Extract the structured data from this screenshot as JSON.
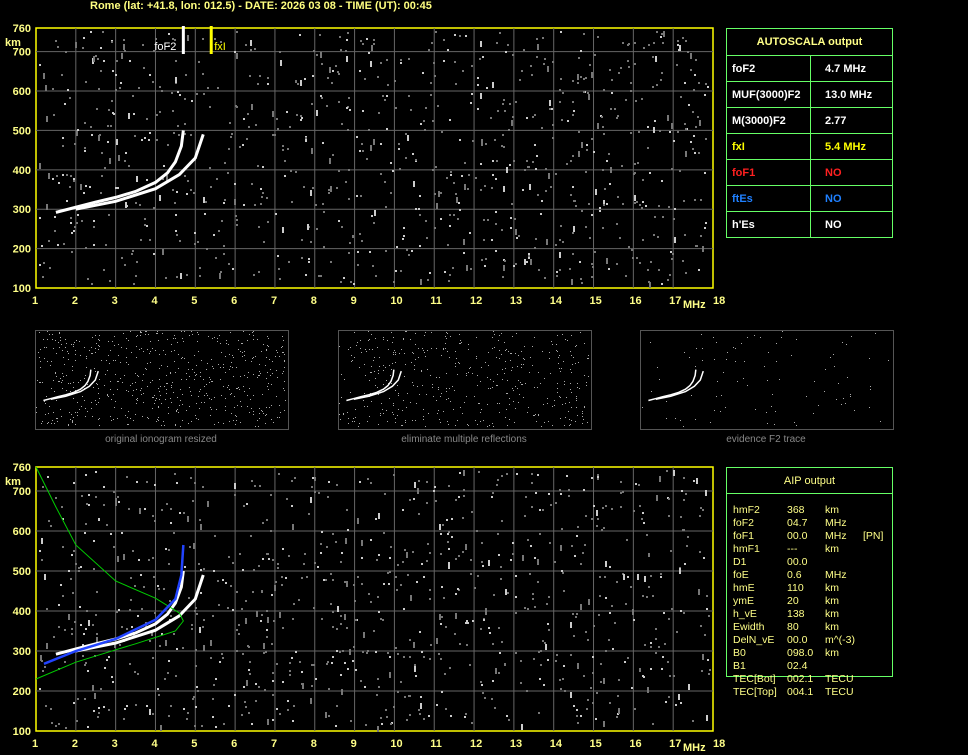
{
  "header": {
    "title": "Rome (lat: +41.8, lon: 012.5) - DATE: 2026 03 08 - TIME (UT): 00:45"
  },
  "autoscala": {
    "title": "AUTOSCALA output",
    "rows": [
      {
        "label": "foF2",
        "value": "4.7 MHz",
        "color": "#ffffff"
      },
      {
        "label": "MUF(3000)F2",
        "value": "13.0 MHz",
        "color": "#ffffff"
      },
      {
        "label": "M(3000)F2",
        "value": "2.77",
        "color": "#ffffff"
      },
      {
        "label": "fxI",
        "value": "5.4 MHz",
        "color": "#ffff00"
      },
      {
        "label": "foF1",
        "value": "NO",
        "color": "#ff2020"
      },
      {
        "label": "ftEs",
        "value": "NO",
        "color": "#2080ff"
      },
      {
        "label": "h'Es",
        "value": "NO",
        "color": "#ffffff"
      }
    ]
  },
  "aip": {
    "title": "AIP output",
    "rows": [
      [
        "hmF2",
        "368",
        "km",
        ""
      ],
      [
        "foF2",
        "04.7",
        "MHz",
        ""
      ],
      [
        "foF1",
        "00.0",
        "MHz",
        "[PN]"
      ],
      [
        "hmF1",
        "---",
        "km",
        ""
      ],
      [
        "D1",
        "00.0",
        "",
        ""
      ],
      [
        "foE",
        "0.6",
        "MHz",
        ""
      ],
      [
        "hmE",
        "110",
        "km",
        ""
      ],
      [
        "ymE",
        "20",
        "km",
        ""
      ],
      [
        "h_vE",
        "138",
        "km",
        ""
      ],
      [
        "Ewidth",
        "80",
        "km",
        ""
      ],
      [
        "DelN_vE",
        "00.0",
        "m^(-3)",
        ""
      ],
      [
        "B0",
        "098.0",
        "km",
        ""
      ],
      [
        "B1",
        "02.4",
        "",
        ""
      ],
      [
        "TEC[Bot]",
        "002.1",
        "TECU",
        ""
      ],
      [
        "TEC[Top]",
        "004.1",
        "TECU",
        ""
      ]
    ]
  },
  "thumbnails": [
    "original ionogram resized",
    "eliminate multiple reflections",
    "evidence F2 trace"
  ],
  "markers": {
    "foF2_label": "foF2",
    "fxI_label": "fxI",
    "foF2": 4.7,
    "fxI": 5.4
  },
  "chart_data": {
    "type": "scatter",
    "xlabel": "MHz",
    "ylabel": "km",
    "xlim": [
      1,
      18
    ],
    "ylim": [
      100,
      760
    ],
    "xticks": [
      "1",
      "2",
      "3",
      "4",
      "5",
      "6",
      "7",
      "8",
      "9",
      "10",
      "11",
      "12",
      "13",
      "14",
      "15",
      "16",
      "17",
      "18"
    ],
    "yticks": [
      "100",
      "200",
      "300",
      "400",
      "500",
      "600",
      "700",
      "760"
    ],
    "grid": true,
    "o_trace": [
      [
        1.5,
        292
      ],
      [
        2,
        305
      ],
      [
        2.5,
        318
      ],
      [
        3,
        330
      ],
      [
        3.5,
        345
      ],
      [
        4,
        368
      ],
      [
        4.3,
        392
      ],
      [
        4.5,
        420
      ],
      [
        4.65,
        460
      ],
      [
        4.7,
        500
      ]
    ],
    "x_trace": [
      [
        2,
        300
      ],
      [
        3,
        320
      ],
      [
        4,
        352
      ],
      [
        4.6,
        388
      ],
      [
        5,
        430
      ],
      [
        5.2,
        490
      ]
    ],
    "profile_green": [
      [
        1,
        760
      ],
      [
        1.5,
        660
      ],
      [
        2,
        565
      ],
      [
        3,
        475
      ],
      [
        4,
        432
      ],
      [
        4.6,
        395
      ],
      [
        4.7,
        375
      ],
      [
        4.5,
        350
      ],
      [
        3.5,
        318
      ],
      [
        3,
        303
      ],
      [
        2,
        272
      ],
      [
        1,
        230
      ]
    ],
    "profile_blue": [
      [
        1.2,
        268
      ],
      [
        2,
        300
      ],
      [
        3,
        330
      ],
      [
        4,
        378
      ],
      [
        4.5,
        430
      ],
      [
        4.65,
        490
      ],
      [
        4.7,
        565
      ]
    ]
  }
}
